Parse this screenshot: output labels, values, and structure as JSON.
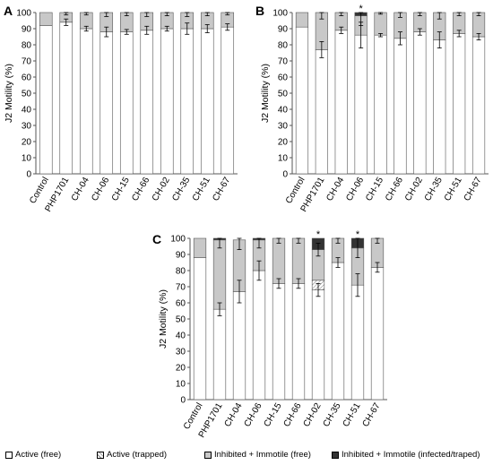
{
  "colors": {
    "active_free": "#ffffff",
    "active_trapped": "#ffffff",
    "inhibited_free": "#c8c8c8",
    "inhibited_infected": "#333333",
    "axis": "#555555"
  },
  "legend": [
    {
      "label": "Active (free)",
      "key": "active_free"
    },
    {
      "label": "Active (trapped)",
      "key": "active_trapped"
    },
    {
      "label": "Inhibited + Immotile (free)",
      "key": "inhibited_free"
    },
    {
      "label": "Inhibited + Immotile (infected/traped)",
      "key": "inhibited_infected"
    }
  ],
  "chart_data": [
    {
      "panel": "A",
      "type": "bar",
      "stacked": true,
      "categories": [
        "Control",
        "PHP1701",
        "CH-04",
        "CH-06",
        "CH-15",
        "CH-66",
        "CH-02",
        "CH-35",
        "CH-51",
        "CH-67"
      ],
      "ylabel": "J2 Motility (%)",
      "ylim": [
        0,
        100
      ],
      "yticks": [
        0,
        10,
        20,
        30,
        40,
        50,
        60,
        70,
        80,
        90,
        100
      ],
      "series": [
        {
          "name": "Active (free)",
          "values": [
            92,
            94,
            90,
            88,
            88,
            89,
            90,
            90,
            90,
            91
          ],
          "errors": [
            0,
            2,
            1.5,
            3,
            1.5,
            2.5,
            1.5,
            3.5,
            2.5,
            2
          ]
        },
        {
          "name": "Active (trapped)",
          "values": [
            0,
            0,
            0,
            0,
            0,
            0,
            0,
            0,
            0,
            0
          ]
        },
        {
          "name": "Inhibited + Immotile (free)",
          "values": [
            8,
            6,
            10,
            12,
            12,
            11,
            10,
            10,
            10,
            9
          ],
          "errors": [
            0,
            1.5,
            1.5,
            2.5,
            2,
            2.5,
            2,
            2.5,
            2,
            1.5
          ]
        },
        {
          "name": "Inhibited + Immotile (infected/traped)",
          "values": [
            0,
            0,
            0,
            0,
            0,
            0,
            0,
            0,
            0,
            0
          ]
        }
      ],
      "significance": []
    },
    {
      "panel": "B",
      "type": "bar",
      "stacked": true,
      "categories": [
        "Control",
        "PHP1701",
        "CH-04",
        "CH-06",
        "CH-15",
        "CH-66",
        "CH-02",
        "CH-35",
        "CH-51",
        "CH-67"
      ],
      "ylabel": "J2 Motility (%)",
      "ylim": [
        0,
        100
      ],
      "yticks": [
        0,
        10,
        20,
        30,
        40,
        50,
        60,
        70,
        80,
        90,
        100
      ],
      "series": [
        {
          "name": "Active (free)",
          "values": [
            91,
            77,
            89,
            86,
            86,
            84,
            88,
            83,
            87,
            85
          ],
          "errors": [
            0,
            5,
            2,
            8,
            1,
            4,
            2,
            5,
            2,
            2
          ]
        },
        {
          "name": "Active (trapped)",
          "values": [
            0,
            0,
            0,
            0,
            0,
            0,
            0,
            0,
            0,
            0
          ]
        },
        {
          "name": "Inhibited + Immotile (free)",
          "values": [
            9,
            23,
            11,
            12,
            14,
            16,
            12,
            17,
            13,
            15
          ],
          "errors": [
            0,
            4,
            2,
            6,
            1,
            3,
            2,
            4,
            2,
            2
          ]
        },
        {
          "name": "Inhibited + Immotile (infected/traped)",
          "values": [
            0,
            0,
            0,
            2,
            0,
            0,
            0,
            0,
            0,
            0
          ]
        }
      ],
      "significance": [
        "CH-06"
      ]
    },
    {
      "panel": "C",
      "type": "bar",
      "stacked": true,
      "categories": [
        "Control",
        "PHP1701",
        "CH-04",
        "CH-06",
        "CH-15",
        "CH-66",
        "CH-02",
        "CH-35",
        "CH-51",
        "CH-67"
      ],
      "ylabel": "J2 Motility (%)",
      "ylim": [
        0,
        100
      ],
      "yticks": [
        0,
        10,
        20,
        30,
        40,
        50,
        60,
        70,
        80,
        90,
        100
      ],
      "series": [
        {
          "name": "Active (free)",
          "values": [
            88,
            56,
            67,
            80,
            72,
            72,
            68,
            85,
            71,
            82
          ],
          "errors": [
            0,
            4,
            7,
            6,
            3,
            3,
            4,
            3,
            7,
            3
          ]
        },
        {
          "name": "Active (trapped)",
          "values": [
            0,
            0,
            0,
            0,
            0,
            0,
            6,
            0,
            0,
            0
          ]
        },
        {
          "name": "Inhibited + Immotile (free)",
          "values": [
            12,
            43,
            32,
            19,
            28,
            28,
            19,
            15,
            23,
            18
          ],
          "errors": [
            0,
            5,
            6,
            5,
            3,
            3,
            4,
            3,
            6,
            3
          ]
        },
        {
          "name": "Inhibited + Immotile (infected/traped)",
          "values": [
            0,
            1,
            0,
            1,
            0,
            0,
            7,
            0,
            6,
            0
          ]
        }
      ],
      "significance": [
        "CH-02",
        "CH-51"
      ]
    }
  ]
}
